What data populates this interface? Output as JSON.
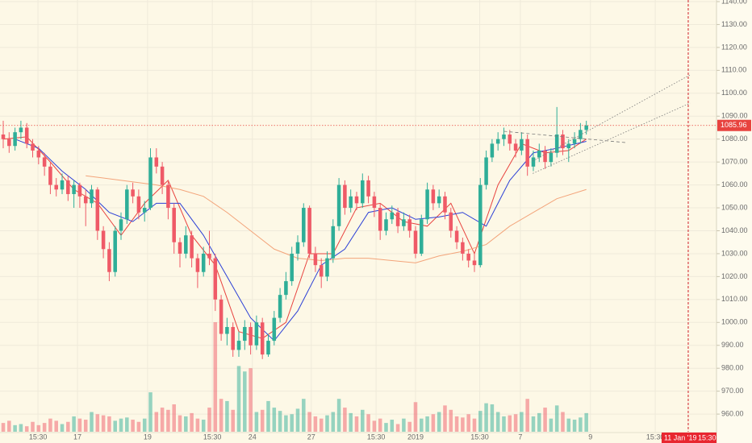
{
  "chart_data": {
    "type": "candlestick",
    "up_color": "#2fae98",
    "down_color": "#ef5a67",
    "ylim": [
      952.3,
      1140.7
    ],
    "yticks": [
      {
        "value": 1140,
        "label": "1140.00"
      },
      {
        "value": 1130,
        "label": "1130.00"
      },
      {
        "value": 1120,
        "label": "1120.00"
      },
      {
        "value": 1110,
        "label": "1110.00"
      },
      {
        "value": 1100,
        "label": "1100.00"
      },
      {
        "value": 1090,
        "label": "1090.00"
      },
      {
        "value": 1080,
        "label": "1080.00"
      },
      {
        "value": 1070,
        "label": "1070.00"
      },
      {
        "value": 1060,
        "label": "1060.00"
      },
      {
        "value": 1050,
        "label": "1050.00"
      },
      {
        "value": 1040,
        "label": "1040.00"
      },
      {
        "value": 1030,
        "label": "1030.00"
      },
      {
        "value": 1020,
        "label": "1020.00"
      },
      {
        "value": 1010,
        "label": "1010.00"
      },
      {
        "value": 1000,
        "label": "1000.00"
      },
      {
        "value": 990,
        "label": "990.00"
      },
      {
        "value": 980,
        "label": "980.00"
      },
      {
        "value": 970,
        "label": "970.00"
      },
      {
        "value": 960,
        "label": "960.00"
      }
    ],
    "xlim": [
      -0.55,
      121.1
    ],
    "xticks": [
      {
        "value": 5.9,
        "label": "15:30"
      },
      {
        "value": 12.6,
        "label": "17"
      },
      {
        "value": 24.5,
        "label": "19"
      },
      {
        "value": 35.5,
        "label": "15:30"
      },
      {
        "value": 42.3,
        "label": "24"
      },
      {
        "value": 52.3,
        "label": "27"
      },
      {
        "value": 63.3,
        "label": "15:30"
      },
      {
        "value": 70,
        "label": "2019"
      },
      {
        "value": 80.9,
        "label": "15:30"
      },
      {
        "value": 87.8,
        "label": "7"
      },
      {
        "value": 99.7,
        "label": "9"
      },
      {
        "value": 110.7,
        "label": "15:30"
      }
    ],
    "grid": true,
    "candles": [
      [
        1082,
        1088,
        1076,
        1080
      ],
      [
        1080,
        1083,
        1074,
        1077
      ],
      [
        1077,
        1085,
        1075,
        1083
      ],
      [
        1083,
        1088,
        1080,
        1085
      ],
      [
        1085,
        1087,
        1076,
        1078
      ],
      [
        1078,
        1080,
        1072,
        1075
      ],
      [
        1075,
        1077,
        1069,
        1072
      ],
      [
        1072,
        1074,
        1064,
        1068
      ],
      [
        1068,
        1070,
        1056,
        1060
      ],
      [
        1060,
        1063,
        1055,
        1058
      ],
      [
        1058,
        1065,
        1056,
        1062
      ],
      [
        1062,
        1064,
        1053,
        1056
      ],
      [
        1056,
        1062,
        1050,
        1060
      ],
      [
        1060,
        1061,
        1050,
        1055
      ],
      [
        1055,
        1058,
        1042,
        1052
      ],
      [
        1052,
        1060,
        1050,
        1058
      ],
      [
        1058,
        1059,
        1036,
        1040
      ],
      [
        1040,
        1042,
        1028,
        1032
      ],
      [
        1032,
        1035,
        1018,
        1022
      ],
      [
        1022,
        1042,
        1020,
        1040
      ],
      [
        1040,
        1048,
        1036,
        1045
      ],
      [
        1045,
        1060,
        1043,
        1058
      ],
      [
        1058,
        1061,
        1052,
        1055
      ],
      [
        1055,
        1058,
        1045,
        1048
      ],
      [
        1048,
        1053,
        1044,
        1050
      ],
      [
        1050,
        1076,
        1049,
        1072
      ],
      [
        1072,
        1076,
        1065,
        1068
      ],
      [
        1068,
        1070,
        1056,
        1060
      ],
      [
        1060,
        1062,
        1045,
        1050
      ],
      [
        1050,
        1052,
        1030,
        1035
      ],
      [
        1035,
        1037,
        1024,
        1030
      ],
      [
        1030,
        1042,
        1028,
        1038
      ],
      [
        1038,
        1040,
        1024,
        1028
      ],
      [
        1028,
        1030,
        1015,
        1022
      ],
      [
        1022,
        1033,
        1020,
        1030
      ],
      [
        1030,
        1040,
        1025,
        1028
      ],
      [
        1028,
        1030,
        1005,
        1010
      ],
      [
        1010,
        1012,
        992,
        995
      ],
      [
        995,
        1002,
        990,
        998
      ],
      [
        998,
        1000,
        985,
        988
      ],
      [
        988,
        996,
        985,
        992
      ],
      [
        992,
        1001,
        988,
        998
      ],
      [
        998,
        1000,
        986,
        990
      ],
      [
        990,
        1003,
        988,
        1000
      ],
      [
        1000,
        1002,
        984,
        986
      ],
      [
        986,
        995,
        985,
        992
      ],
      [
        992,
        1005,
        990,
        1002
      ],
      [
        1002,
        1015,
        1000,
        1012
      ],
      [
        1012,
        1022,
        1010,
        1018
      ],
      [
        1018,
        1033,
        1016,
        1030
      ],
      [
        1030,
        1038,
        1027,
        1035
      ],
      [
        1035,
        1052,
        1033,
        1050
      ],
      [
        1050,
        1051,
        1028,
        1030
      ],
      [
        1030,
        1033,
        1022,
        1025
      ],
      [
        1025,
        1028,
        1015,
        1020
      ],
      [
        1020,
        1031,
        1018,
        1028
      ],
      [
        1028,
        1045,
        1026,
        1042
      ],
      [
        1042,
        1063,
        1040,
        1060
      ],
      [
        1060,
        1062,
        1047,
        1050
      ],
      [
        1050,
        1058,
        1048,
        1055
      ],
      [
        1055,
        1057,
        1049,
        1052
      ],
      [
        1052,
        1065,
        1050,
        1062
      ],
      [
        1062,
        1064,
        1052,
        1055
      ],
      [
        1055,
        1057,
        1046,
        1050
      ],
      [
        1050,
        1052,
        1036,
        1040
      ],
      [
        1040,
        1048,
        1038,
        1045
      ],
      [
        1045,
        1051,
        1043,
        1048
      ],
      [
        1048,
        1050,
        1039,
        1042
      ],
      [
        1042,
        1048,
        1040,
        1045
      ],
      [
        1045,
        1047,
        1037,
        1040
      ],
      [
        1040,
        1042,
        1028,
        1030
      ],
      [
        1030,
        1047,
        1029,
        1045
      ],
      [
        1045,
        1061,
        1043,
        1058
      ],
      [
        1058,
        1060,
        1049,
        1052
      ],
      [
        1052,
        1058,
        1050,
        1055
      ],
      [
        1055,
        1057,
        1045,
        1048
      ],
      [
        1048,
        1050,
        1037,
        1040
      ],
      [
        1040,
        1042,
        1032,
        1035
      ],
      [
        1035,
        1037,
        1027,
        1030
      ],
      [
        1030,
        1032,
        1024,
        1027
      ],
      [
        1027,
        1030,
        1022,
        1025
      ],
      [
        1025,
        1063,
        1024,
        1060
      ],
      [
        1060,
        1075,
        1058,
        1072
      ],
      [
        1072,
        1080,
        1070,
        1078
      ],
      [
        1078,
        1083,
        1075,
        1080
      ],
      [
        1080,
        1085,
        1077,
        1082
      ],
      [
        1082,
        1084,
        1075,
        1078
      ],
      [
        1078,
        1080,
        1072,
        1075
      ],
      [
        1075,
        1083,
        1073,
        1080
      ],
      [
        1080,
        1082,
        1064,
        1068
      ],
      [
        1068,
        1075,
        1066,
        1072
      ],
      [
        1072,
        1078,
        1070,
        1075
      ],
      [
        1075,
        1077,
        1067,
        1070
      ],
      [
        1070,
        1076,
        1068,
        1074
      ],
      [
        1074,
        1094,
        1072,
        1082
      ],
      [
        1082,
        1084,
        1073,
        1076
      ],
      [
        1076,
        1080,
        1070,
        1078
      ],
      [
        1078,
        1083,
        1076,
        1080
      ],
      [
        1080,
        1087,
        1078,
        1084
      ],
      [
        1084,
        1088,
        1082,
        1085.96
      ]
    ],
    "volume_ylim": [
      0,
      100
    ],
    "volume": [
      8,
      10,
      6,
      7,
      5,
      9,
      6,
      8,
      12,
      10,
      7,
      9,
      14,
      12,
      11,
      18,
      16,
      15,
      14,
      10,
      12,
      13,
      11,
      9,
      12,
      36,
      18,
      22,
      20,
      25,
      15,
      14,
      17,
      12,
      11,
      22,
      100,
      30,
      28,
      20,
      60,
      55,
      58,
      18,
      20,
      28,
      22,
      19,
      15,
      16,
      21,
      30,
      18,
      14,
      12,
      15,
      18,
      30,
      22,
      17,
      14,
      20,
      16,
      10,
      12,
      8,
      11,
      7,
      12,
      9,
      27,
      12,
      14,
      16,
      18,
      24,
      20,
      14,
      13,
      16,
      12,
      19,
      26,
      25,
      18,
      14,
      15,
      16,
      18,
      30,
      14,
      17,
      22,
      12,
      24,
      18,
      12,
      11,
      13,
      17
    ],
    "moving_averages": [
      {
        "color": "#e8433f",
        "x": [
          0,
          4,
          8,
          12,
          16,
          20,
          24,
          28,
          32,
          36,
          40,
          44,
          48,
          52,
          56,
          60,
          64,
          68,
          72,
          76,
          80,
          84,
          88,
          92,
          96,
          99
        ],
        "values": [
          1080,
          1081,
          1070,
          1058,
          1052,
          1038,
          1052,
          1062,
          1038,
          1025,
          996,
          993,
          1000,
          1030,
          1030,
          1050,
          1052,
          1044,
          1042,
          1052,
          1030,
          1060,
          1078,
          1074,
          1075,
          1080
        ]
      },
      {
        "color": "#2b3fd6",
        "x": [
          2,
          6,
          10,
          14,
          18,
          22,
          26,
          30,
          34,
          38,
          42,
          46,
          50,
          54,
          58,
          62,
          66,
          70,
          74,
          78,
          82,
          86,
          90,
          94,
          99
        ],
        "values": [
          1080,
          1076,
          1066,
          1058,
          1048,
          1044,
          1052,
          1052,
          1038,
          1020,
          1002,
          992,
          1005,
          1025,
          1032,
          1048,
          1050,
          1045,
          1046,
          1048,
          1042,
          1062,
          1074,
          1076,
          1079
        ]
      },
      {
        "color": "#f3a47a",
        "x": [
          14,
          20,
          26,
          30,
          34,
          38,
          42,
          46,
          50,
          54,
          58,
          62,
          66,
          70,
          74,
          78,
          82,
          86,
          90,
          94,
          99
        ],
        "values": [
          1064,
          1062,
          1060,
          1058,
          1055,
          1048,
          1040,
          1032,
          1028,
          1027,
          1028,
          1028,
          1027,
          1026,
          1029,
          1031,
          1034,
          1042,
          1048,
          1054,
          1058
        ]
      }
    ],
    "trendlines": [
      {
        "points": [
          [
            89.9,
            1070.4
          ],
          [
            116.6,
            1108
          ]
        ]
      },
      {
        "points": [
          [
            89.9,
            1065
          ],
          [
            116.6,
            1095.7
          ]
        ]
      },
      {
        "points": [
          [
            85,
            1083.4
          ],
          [
            105.6,
            1078.5
          ]
        ]
      }
    ],
    "last_price": {
      "value": 1085.96,
      "label": "1085.96"
    },
    "cursor": {
      "value": 116.3,
      "date": "11 Jan '19",
      "time": "15:30"
    }
  }
}
